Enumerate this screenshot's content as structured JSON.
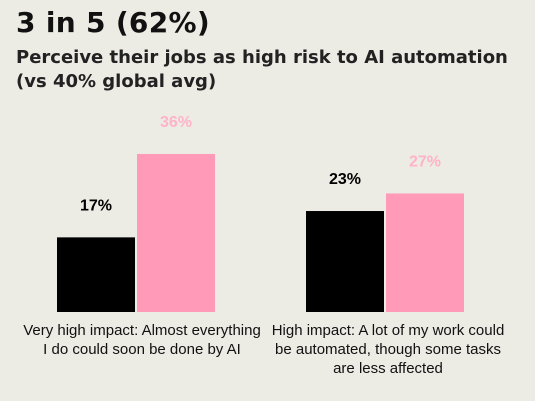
{
  "headline": "3 in 5 (62%)",
  "subtitle": "Perceive their jobs as high risk to AI automation (vs 40% global avg)",
  "colors": {
    "series_a": "#000000",
    "series_b": "#ff9ab8",
    "label_b": "#ffb3c8",
    "background": "#ecebe4"
  },
  "chart_data": {
    "type": "bar",
    "categories": [
      "Very high impact: Almost everything I do could soon be done by AI",
      "High impact: A lot of my work could be automated, though some tasks are less affected"
    ],
    "series": [
      {
        "values": [
          17,
          23
        ],
        "data_labels": [
          "17%",
          "23%"
        ],
        "color": "#000000"
      },
      {
        "values": [
          36,
          27
        ],
        "data_labels": [
          "36%",
          "27%"
        ],
        "color": "#ff9ab8"
      }
    ],
    "ylim": [
      0,
      40
    ],
    "grid": false,
    "legend": "none"
  }
}
